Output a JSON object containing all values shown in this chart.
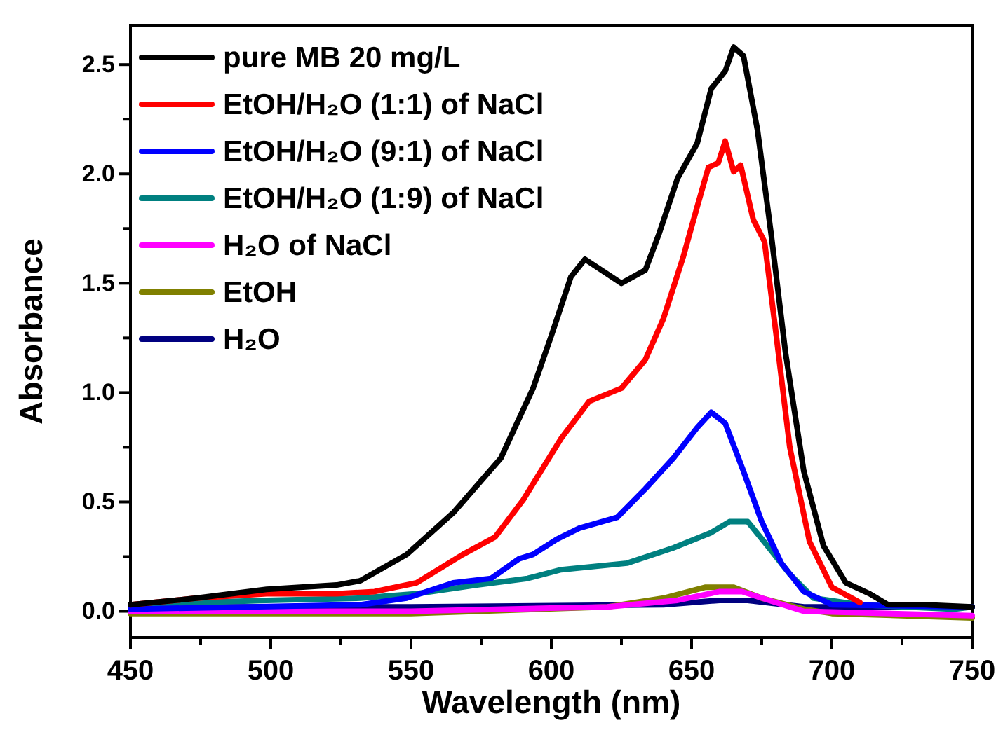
{
  "chart_data": {
    "type": "line",
    "xlabel": "Wavelength (nm)",
    "ylabel": "Absorbance",
    "xlim": [
      450,
      750
    ],
    "ylim": [
      -0.12,
      2.68
    ],
    "xticks": [
      450,
      {
        "value": 475,
        "label": null
      },
      500,
      {
        "value": 525,
        "label": null
      },
      550,
      {
        "value": 575,
        "label": null
      },
      600,
      {
        "value": 625,
        "label": null
      },
      650,
      {
        "value": 675,
        "label": null
      },
      700,
      {
        "value": 725,
        "label": null
      },
      750
    ],
    "yticks": [
      {
        "value": 0,
        "label": "0.0"
      },
      {
        "value": 0.25,
        "label": null
      },
      {
        "value": 0.5,
        "label": "0.5"
      },
      {
        "value": 0.75,
        "label": null
      },
      {
        "value": 1,
        "label": "1.0"
      },
      {
        "value": 1.25,
        "label": null
      },
      {
        "value": 1.5,
        "label": "1.5"
      },
      {
        "value": 1.75,
        "label": null
      },
      {
        "value": 2,
        "label": "2.0"
      },
      {
        "value": 2.25,
        "label": null
      },
      {
        "value": 2.5,
        "label": "2.5"
      }
    ],
    "grid": false,
    "legend": "top left",
    "marker": "none",
    "line_style": "solid",
    "series": [
      {
        "name": "pure MB 20 mg/L",
        "color": "#000000",
        "x": [
          450,
          473.5,
          498.5,
          523.5,
          532,
          548.5,
          565,
          582,
          593.5,
          600,
          607,
          612,
          625,
          633.5,
          638.5,
          645,
          652,
          657,
          662,
          665,
          668.5,
          673.5,
          678.5,
          683.5,
          690,
          697,
          705,
          713.5,
          720,
          733,
          750
        ],
        "values": [
          0.03,
          0.06,
          0.1,
          0.12,
          0.14,
          0.26,
          0.45,
          0.7,
          1.02,
          1.26,
          1.53,
          1.61,
          1.5,
          1.56,
          1.73,
          1.98,
          2.14,
          2.39,
          2.47,
          2.58,
          2.54,
          2.2,
          1.71,
          1.18,
          0.64,
          0.3,
          0.13,
          0.08,
          0.03,
          0.03,
          0.02
        ]
      },
      {
        "name": "EtOH/H₂O (1:1) of NaCl",
        "color": "#ff0000",
        "x": [
          450,
          473.5,
          498.5,
          523.5,
          537,
          552,
          568.5,
          580,
          590,
          603.5,
          613.5,
          625,
          633.5,
          640,
          647,
          652,
          656,
          659.5,
          662,
          665,
          667.5,
          672,
          676,
          680,
          685,
          692,
          700,
          710
        ],
        "values": [
          0.03,
          0.06,
          0.08,
          0.08,
          0.09,
          0.13,
          0.26,
          0.34,
          0.51,
          0.79,
          0.96,
          1.02,
          1.15,
          1.34,
          1.62,
          1.85,
          2.03,
          2.05,
          2.15,
          2.01,
          2.04,
          1.79,
          1.69,
          1.28,
          0.75,
          0.32,
          0.11,
          0.04
        ]
      },
      {
        "name": "EtOH/H₂O (9:1) of NaCl",
        "color": "#0000ff",
        "x": [
          450,
          532,
          548.5,
          565,
          578.5,
          588.5,
          593.5,
          602,
          610,
          623.5,
          633.5,
          643.5,
          652,
          657,
          662,
          668.5,
          675,
          682,
          690,
          700,
          750
        ],
        "values": [
          0.01,
          0.03,
          0.06,
          0.13,
          0.15,
          0.24,
          0.26,
          0.33,
          0.38,
          0.43,
          0.56,
          0.7,
          0.84,
          0.91,
          0.86,
          0.64,
          0.41,
          0.22,
          0.09,
          0.03,
          0.02
        ]
      },
      {
        "name": "EtOH/H₂O (1:9) of NaCl",
        "color": "#008080",
        "x": [
          450,
          498.5,
          532,
          552,
          573.5,
          591.5,
          603.5,
          627,
          643.5,
          657,
          663.5,
          670,
          677,
          685,
          693.5,
          710,
          743.5,
          750
        ],
        "values": [
          0.03,
          0.05,
          0.06,
          0.08,
          0.12,
          0.15,
          0.19,
          0.22,
          0.29,
          0.36,
          0.41,
          0.41,
          0.3,
          0.17,
          0.06,
          0.03,
          0.01,
          0.02
        ]
      },
      {
        "name": "H₂O of NaCl",
        "color": "#ff00ff",
        "x": [
          450,
          550,
          620,
          645,
          660,
          668,
          680,
          690,
          750
        ],
        "values": [
          0,
          0,
          0.02,
          0.05,
          0.09,
          0.09,
          0.04,
          0,
          -0.02
        ]
      },
      {
        "name": "EtOH",
        "color": "#808000",
        "x": [
          450,
          550,
          620,
          640,
          655,
          665,
          675,
          690,
          700,
          750
        ],
        "values": [
          -0.01,
          -0.01,
          0.02,
          0.06,
          0.11,
          0.11,
          0.06,
          0.01,
          -0.01,
          -0.03
        ]
      },
      {
        "name": "H₂O",
        "color": "#000080",
        "x": [
          450,
          550,
          640,
          660,
          670,
          690,
          750
        ],
        "values": [
          0.02,
          0.02,
          0.03,
          0.05,
          0.05,
          0.02,
          0.02
        ]
      }
    ]
  }
}
